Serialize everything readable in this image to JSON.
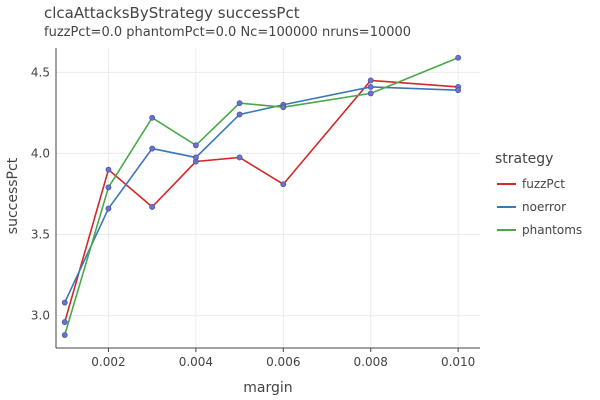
{
  "chart_data": {
    "type": "line",
    "title": "clcaAttacksByStrategy successPct",
    "subtitle": "fuzzPct=0.0 phantomPct=0.0 Nc=100000 nruns=10000",
    "xlabel": "margin",
    "ylabel": "successPct",
    "xlim": [
      0.0008,
      0.0105
    ],
    "ylim": [
      2.8,
      4.65
    ],
    "xticks": [
      0.002,
      0.004,
      0.006,
      0.008,
      0.01
    ],
    "xtick_labels": [
      "0.002",
      "0.004",
      "0.006",
      "0.008",
      "0.010"
    ],
    "yticks": [
      3.0,
      3.5,
      4.0,
      4.5
    ],
    "ytick_labels": [
      "3.0",
      "3.5",
      "4.0",
      "4.5"
    ],
    "grid": true,
    "legend": {
      "title": "strategy",
      "position": "right"
    },
    "x": [
      0.001,
      0.002,
      0.003,
      0.004,
      0.005,
      0.006,
      0.008,
      0.01
    ],
    "series": [
      {
        "name": "fuzzPct",
        "color": "#d62728",
        "values": [
          2.96,
          3.9,
          3.67,
          3.95,
          3.975,
          3.81,
          4.45,
          4.41
        ]
      },
      {
        "name": "noerror",
        "color": "#3a78b8",
        "values": [
          3.08,
          3.66,
          4.03,
          3.975,
          4.24,
          4.3,
          4.41,
          4.39
        ]
      },
      {
        "name": "phantoms",
        "color": "#4aa84a",
        "values": [
          2.88,
          3.79,
          4.22,
          4.05,
          4.31,
          4.285,
          4.37,
          4.59
        ]
      }
    ],
    "marker_color": "#6b72c8"
  }
}
